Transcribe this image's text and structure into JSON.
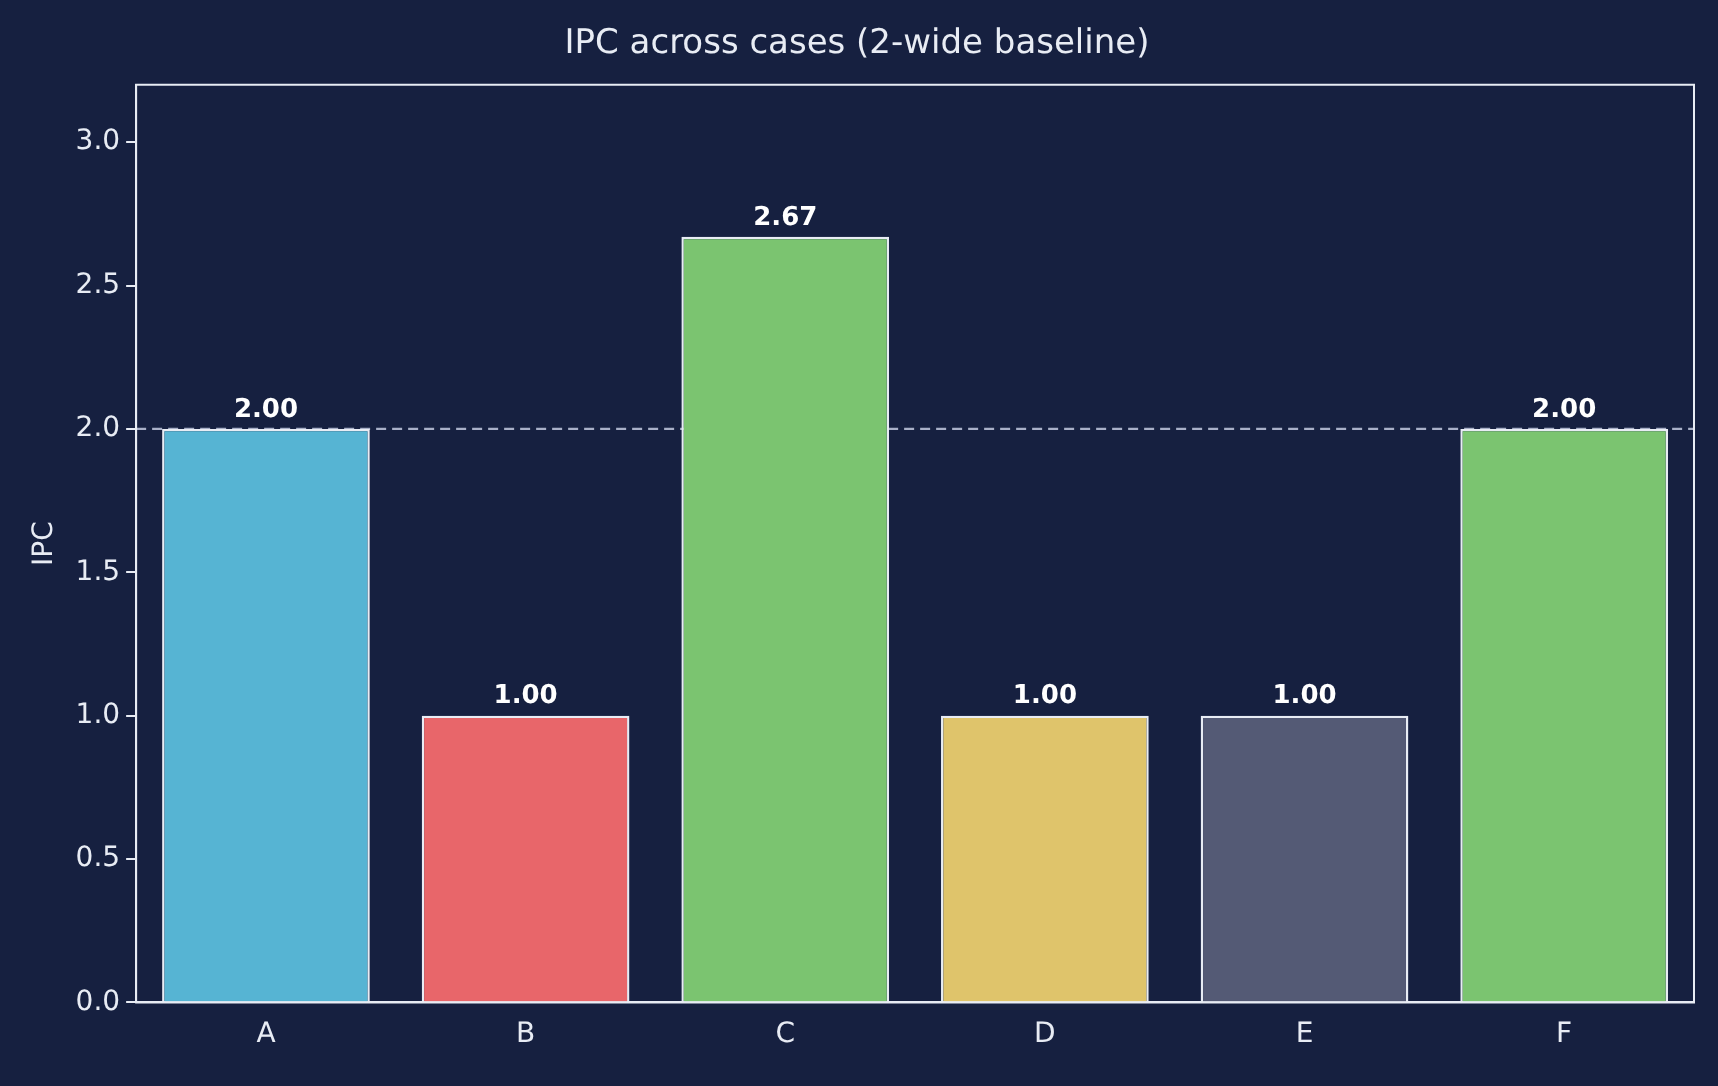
{
  "chart_data": {
    "type": "bar",
    "title": "IPC across cases (2-wide baseline)",
    "ylabel": "IPC",
    "categories": [
      "A",
      "B",
      "C",
      "D",
      "E",
      "F"
    ],
    "values": [
      2.0,
      1.0,
      2.67,
      1.0,
      1.0,
      2.0
    ],
    "colors": [
      "#56b4d3",
      "#e8666a",
      "#7bc470",
      "#dfc46b",
      "#545a75",
      "#7bc470"
    ],
    "value_labels": [
      "2.00",
      "1.00",
      "2.67",
      "1.00",
      "1.00",
      "2.00"
    ],
    "ylim": [
      0,
      3.2
    ],
    "yticks": [
      {
        "value": 0,
        "label": "0.0"
      },
      0.5,
      {
        "value": 1,
        "label": "1.0"
      },
      1.5,
      {
        "value": 2,
        "label": "2.0"
      },
      2.5,
      {
        "value": 3,
        "label": "3.0"
      }
    ],
    "ref_lines": [
      {
        "axis": "y",
        "value": 2.0,
        "label": null,
        "color": "#a9b0c8",
        "line_style": "dashed"
      }
    ],
    "grid": false,
    "legend": false
  }
}
